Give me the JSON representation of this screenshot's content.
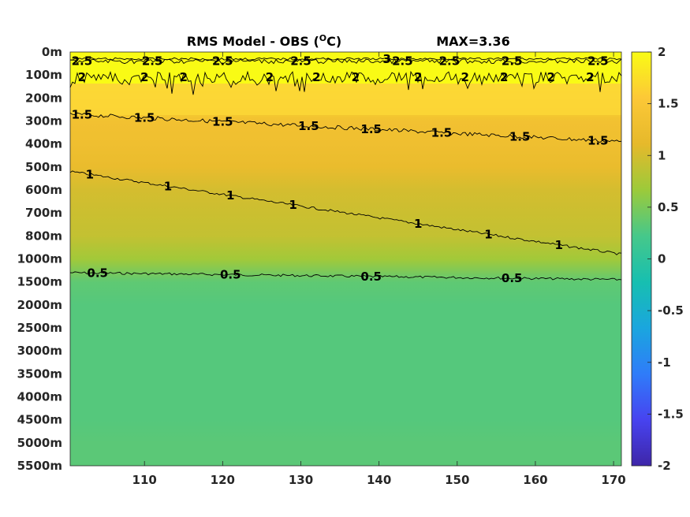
{
  "chart_data": {
    "type": "heatmap",
    "title": "RMS Model - OBS (",
    "title_unit_sup": "O",
    "title_unit_end": "C)",
    "max_label": "MAX=3.36",
    "x_ticks": [
      110,
      120,
      130,
      140,
      150,
      160,
      170
    ],
    "xlim": [
      100.5,
      171
    ],
    "y_tick_labels": [
      "0m",
      "100m",
      "200m",
      "300m",
      "400m",
      "500m",
      "600m",
      "700m",
      "800m",
      "1000m",
      "1500m",
      "2000m",
      "2500m",
      "3000m",
      "3500m",
      "4000m",
      "4500m",
      "5000m",
      "5500m"
    ],
    "colorbar": {
      "ticks": [
        "2",
        "1.5",
        "1",
        "0.5",
        "0",
        "-0.5",
        "-1",
        "-1.5",
        "-2"
      ],
      "range": [
        -2,
        2
      ],
      "colormap": [
        "#3e26a8",
        "#4743f0",
        "#2f7cf9",
        "#1aa6de",
        "#17bfb0",
        "#46c88a",
        "#9cca3a",
        "#e6b92b",
        "#fcc837",
        "#f9fb15"
      ]
    },
    "layers": [
      {
        "depth": "0m",
        "value": 2.5
      },
      {
        "depth": "100m",
        "value": 2.2
      },
      {
        "depth": "200m",
        "value": 1.7
      },
      {
        "depth": "300m",
        "value": 1.35
      },
      {
        "depth": "400m",
        "value": 1.3
      },
      {
        "depth": "500m",
        "value": 1.2
      },
      {
        "depth": "600m",
        "value": 1.0
      },
      {
        "depth": "700m",
        "value": 0.95
      },
      {
        "depth": "800m",
        "value": 0.9
      },
      {
        "depth": "1000m",
        "value": 0.7
      },
      {
        "depth": "1500m",
        "value": 0.35
      },
      {
        "depth": "2000m",
        "value": 0.3
      },
      {
        "depth": "2500m",
        "value": 0.3
      },
      {
        "depth": "3000m",
        "value": 0.3
      },
      {
        "depth": "3500m",
        "value": 0.3
      },
      {
        "depth": "4000m",
        "value": 0.3
      },
      {
        "depth": "4500m",
        "value": 0.3
      },
      {
        "depth": "5000m",
        "value": 0.33
      },
      {
        "depth": "5500m",
        "value": 0.33
      }
    ],
    "contours": [
      {
        "level": "0.5",
        "labels_at": [
          104,
          121,
          139,
          157
        ]
      },
      {
        "level": "1",
        "labels_at": [
          103,
          113,
          121,
          129,
          145,
          154,
          163
        ]
      },
      {
        "level": "1.5",
        "labels_at": [
          102,
          110,
          120,
          131,
          139,
          148,
          158,
          168
        ]
      },
      {
        "level": "2",
        "labels_at": [
          102,
          110,
          115,
          126,
          132,
          137,
          145,
          151,
          156,
          162,
          167
        ]
      },
      {
        "level": "2.5",
        "labels_at": [
          102,
          111,
          120,
          130,
          143,
          149,
          157,
          168
        ]
      },
      {
        "level": "3",
        "labels_at": [
          141
        ]
      }
    ]
  }
}
